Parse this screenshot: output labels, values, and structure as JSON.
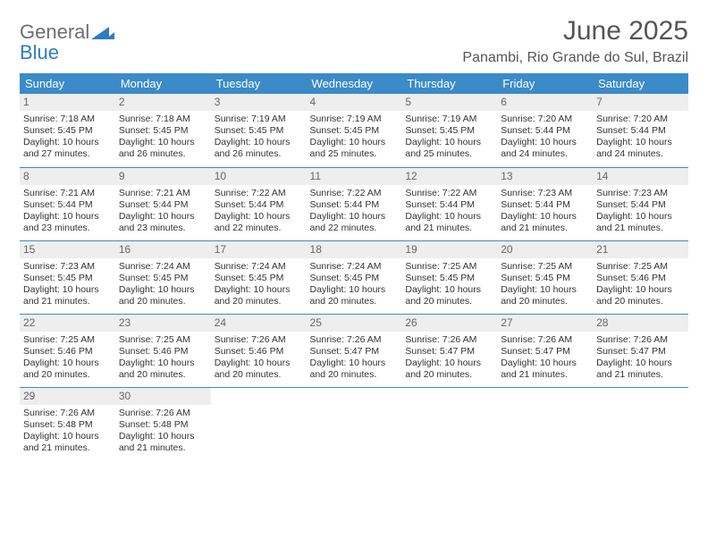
{
  "brand": {
    "word1": "General",
    "word2": "Blue",
    "mark_color": "#2e7cc0"
  },
  "title": "June 2025",
  "location": "Panambi, Rio Grande do Sul, Brazil",
  "colors": {
    "header_bg": "#3b8bc8",
    "header_fg": "#ffffff",
    "daynum_bg": "#eeeeee",
    "daynum_fg": "#666666",
    "rule": "#3b8bc8",
    "text": "#333333"
  },
  "day_headers": [
    "Sunday",
    "Monday",
    "Tuesday",
    "Wednesday",
    "Thursday",
    "Friday",
    "Saturday"
  ],
  "weeks": [
    [
      {
        "n": "1",
        "sr": "Sunrise: 7:18 AM",
        "ss": "Sunset: 5:45 PM",
        "d1": "Daylight: 10 hours",
        "d2": "and 27 minutes."
      },
      {
        "n": "2",
        "sr": "Sunrise: 7:18 AM",
        "ss": "Sunset: 5:45 PM",
        "d1": "Daylight: 10 hours",
        "d2": "and 26 minutes."
      },
      {
        "n": "3",
        "sr": "Sunrise: 7:19 AM",
        "ss": "Sunset: 5:45 PM",
        "d1": "Daylight: 10 hours",
        "d2": "and 26 minutes."
      },
      {
        "n": "4",
        "sr": "Sunrise: 7:19 AM",
        "ss": "Sunset: 5:45 PM",
        "d1": "Daylight: 10 hours",
        "d2": "and 25 minutes."
      },
      {
        "n": "5",
        "sr": "Sunrise: 7:19 AM",
        "ss": "Sunset: 5:45 PM",
        "d1": "Daylight: 10 hours",
        "d2": "and 25 minutes."
      },
      {
        "n": "6",
        "sr": "Sunrise: 7:20 AM",
        "ss": "Sunset: 5:44 PM",
        "d1": "Daylight: 10 hours",
        "d2": "and 24 minutes."
      },
      {
        "n": "7",
        "sr": "Sunrise: 7:20 AM",
        "ss": "Sunset: 5:44 PM",
        "d1": "Daylight: 10 hours",
        "d2": "and 24 minutes."
      }
    ],
    [
      {
        "n": "8",
        "sr": "Sunrise: 7:21 AM",
        "ss": "Sunset: 5:44 PM",
        "d1": "Daylight: 10 hours",
        "d2": "and 23 minutes."
      },
      {
        "n": "9",
        "sr": "Sunrise: 7:21 AM",
        "ss": "Sunset: 5:44 PM",
        "d1": "Daylight: 10 hours",
        "d2": "and 23 minutes."
      },
      {
        "n": "10",
        "sr": "Sunrise: 7:22 AM",
        "ss": "Sunset: 5:44 PM",
        "d1": "Daylight: 10 hours",
        "d2": "and 22 minutes."
      },
      {
        "n": "11",
        "sr": "Sunrise: 7:22 AM",
        "ss": "Sunset: 5:44 PM",
        "d1": "Daylight: 10 hours",
        "d2": "and 22 minutes."
      },
      {
        "n": "12",
        "sr": "Sunrise: 7:22 AM",
        "ss": "Sunset: 5:44 PM",
        "d1": "Daylight: 10 hours",
        "d2": "and 21 minutes."
      },
      {
        "n": "13",
        "sr": "Sunrise: 7:23 AM",
        "ss": "Sunset: 5:44 PM",
        "d1": "Daylight: 10 hours",
        "d2": "and 21 minutes."
      },
      {
        "n": "14",
        "sr": "Sunrise: 7:23 AM",
        "ss": "Sunset: 5:44 PM",
        "d1": "Daylight: 10 hours",
        "d2": "and 21 minutes."
      }
    ],
    [
      {
        "n": "15",
        "sr": "Sunrise: 7:23 AM",
        "ss": "Sunset: 5:45 PM",
        "d1": "Daylight: 10 hours",
        "d2": "and 21 minutes."
      },
      {
        "n": "16",
        "sr": "Sunrise: 7:24 AM",
        "ss": "Sunset: 5:45 PM",
        "d1": "Daylight: 10 hours",
        "d2": "and 20 minutes."
      },
      {
        "n": "17",
        "sr": "Sunrise: 7:24 AM",
        "ss": "Sunset: 5:45 PM",
        "d1": "Daylight: 10 hours",
        "d2": "and 20 minutes."
      },
      {
        "n": "18",
        "sr": "Sunrise: 7:24 AM",
        "ss": "Sunset: 5:45 PM",
        "d1": "Daylight: 10 hours",
        "d2": "and 20 minutes."
      },
      {
        "n": "19",
        "sr": "Sunrise: 7:25 AM",
        "ss": "Sunset: 5:45 PM",
        "d1": "Daylight: 10 hours",
        "d2": "and 20 minutes."
      },
      {
        "n": "20",
        "sr": "Sunrise: 7:25 AM",
        "ss": "Sunset: 5:45 PM",
        "d1": "Daylight: 10 hours",
        "d2": "and 20 minutes."
      },
      {
        "n": "21",
        "sr": "Sunrise: 7:25 AM",
        "ss": "Sunset: 5:46 PM",
        "d1": "Daylight: 10 hours",
        "d2": "and 20 minutes."
      }
    ],
    [
      {
        "n": "22",
        "sr": "Sunrise: 7:25 AM",
        "ss": "Sunset: 5:46 PM",
        "d1": "Daylight: 10 hours",
        "d2": "and 20 minutes."
      },
      {
        "n": "23",
        "sr": "Sunrise: 7:25 AM",
        "ss": "Sunset: 5:46 PM",
        "d1": "Daylight: 10 hours",
        "d2": "and 20 minutes."
      },
      {
        "n": "24",
        "sr": "Sunrise: 7:26 AM",
        "ss": "Sunset: 5:46 PM",
        "d1": "Daylight: 10 hours",
        "d2": "and 20 minutes."
      },
      {
        "n": "25",
        "sr": "Sunrise: 7:26 AM",
        "ss": "Sunset: 5:47 PM",
        "d1": "Daylight: 10 hours",
        "d2": "and 20 minutes."
      },
      {
        "n": "26",
        "sr": "Sunrise: 7:26 AM",
        "ss": "Sunset: 5:47 PM",
        "d1": "Daylight: 10 hours",
        "d2": "and 20 minutes."
      },
      {
        "n": "27",
        "sr": "Sunrise: 7:26 AM",
        "ss": "Sunset: 5:47 PM",
        "d1": "Daylight: 10 hours",
        "d2": "and 21 minutes."
      },
      {
        "n": "28",
        "sr": "Sunrise: 7:26 AM",
        "ss": "Sunset: 5:47 PM",
        "d1": "Daylight: 10 hours",
        "d2": "and 21 minutes."
      }
    ],
    [
      {
        "n": "29",
        "sr": "Sunrise: 7:26 AM",
        "ss": "Sunset: 5:48 PM",
        "d1": "Daylight: 10 hours",
        "d2": "and 21 minutes."
      },
      {
        "n": "30",
        "sr": "Sunrise: 7:26 AM",
        "ss": "Sunset: 5:48 PM",
        "d1": "Daylight: 10 hours",
        "d2": "and 21 minutes."
      },
      null,
      null,
      null,
      null,
      null
    ]
  ]
}
